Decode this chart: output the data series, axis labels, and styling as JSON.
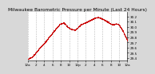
{
  "title": "Milwaukee Barometric Pressure per Minute (Last 24 Hours)",
  "background_color": "#d8d8d8",
  "plot_bg_color": "#ffffff",
  "dot_color": "#cc0000",
  "dot_size": 0.6,
  "ylim": [
    29.35,
    30.28
  ],
  "yticks": [
    29.4,
    29.5,
    29.6,
    29.7,
    29.8,
    29.9,
    30.0,
    30.1,
    30.2
  ],
  "num_points": 1440,
  "grid_color": "#bbbbbb",
  "title_fontsize": 4.2,
  "tick_fontsize": 3.0,
  "pressure_waypoints": [
    [
      0.0,
      29.38
    ],
    [
      0.04,
      29.42
    ],
    [
      0.08,
      29.5
    ],
    [
      0.13,
      29.62
    ],
    [
      0.18,
      29.72
    ],
    [
      0.22,
      29.82
    ],
    [
      0.28,
      29.96
    ],
    [
      0.32,
      30.05
    ],
    [
      0.36,
      30.08
    ],
    [
      0.4,
      30.0
    ],
    [
      0.43,
      29.96
    ],
    [
      0.47,
      29.94
    ],
    [
      0.5,
      29.98
    ],
    [
      0.53,
      30.04
    ],
    [
      0.56,
      30.07
    ],
    [
      0.6,
      30.1
    ],
    [
      0.64,
      30.14
    ],
    [
      0.68,
      30.18
    ],
    [
      0.72,
      30.18
    ],
    [
      0.76,
      30.14
    ],
    [
      0.8,
      30.1
    ],
    [
      0.83,
      30.06
    ],
    [
      0.86,
      30.04
    ],
    [
      0.88,
      30.06
    ],
    [
      0.91,
      30.05
    ],
    [
      0.93,
      30.0
    ],
    [
      0.96,
      29.9
    ],
    [
      0.98,
      29.82
    ],
    [
      1.0,
      29.74
    ]
  ]
}
